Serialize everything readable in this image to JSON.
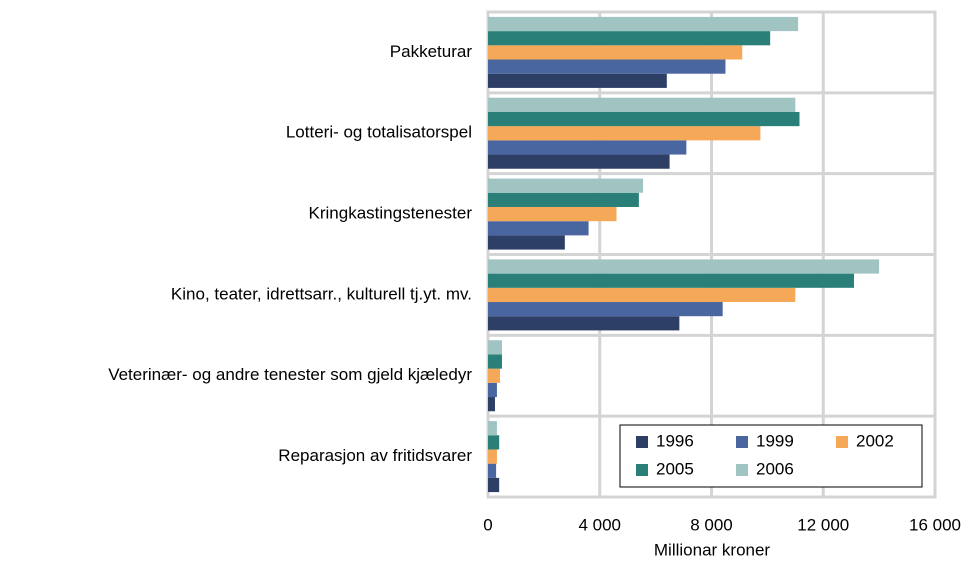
{
  "chart_data": {
    "type": "hbar",
    "xlabel": "Millionar kroner",
    "categories": [
      "Pakketurar",
      "Lotteri- og totalisatorspel",
      "Kringkastingstenester",
      "Kino, teater, idrettsarr., kulturell tj.yt. mv.",
      "Veterinær- og andre tenester som gjeld kjæledyr",
      "Reparasjon av fritidsvarer"
    ],
    "series": [
      {
        "name": "1996",
        "color": "#2e3f66",
        "values": [
          6400,
          6500,
          2750,
          6850,
          250,
          400
        ]
      },
      {
        "name": "1999",
        "color": "#4a66a0",
        "values": [
          8500,
          7100,
          3600,
          8400,
          320,
          290
        ]
      },
      {
        "name": "2002",
        "color": "#f5a857",
        "values": [
          9100,
          9750,
          4600,
          11000,
          430,
          320
        ]
      },
      {
        "name": "2005",
        "color": "#2a8078",
        "values": [
          10100,
          11150,
          5400,
          13100,
          500,
          400
        ]
      },
      {
        "name": "2006",
        "color": "#9fc4c2",
        "values": [
          11100,
          11000,
          5550,
          14000,
          500,
          320
        ]
      }
    ],
    "xlim": [
      0,
      16000
    ],
    "xticks": [
      0,
      {
        "value": 4000,
        "label": "4 000"
      },
      {
        "value": 8000,
        "label": "8 000"
      },
      {
        "value": 12000,
        "label": "12 000"
      },
      {
        "value": 16000,
        "label": "16 000"
      }
    ],
    "grid": true,
    "legend": "lower right"
  }
}
